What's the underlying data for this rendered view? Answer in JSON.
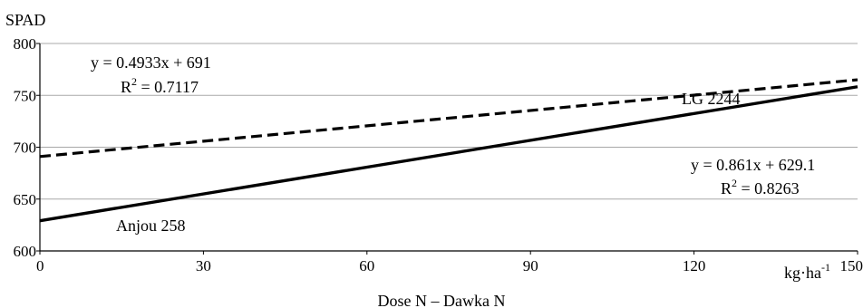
{
  "chart_data": {
    "type": "line",
    "title": "",
    "ylabel": "SPAD",
    "xlabel": "Dose N – Dawka N",
    "x_unit": "kg·ha",
    "x_unit_sup": "-1",
    "xlim": [
      0,
      150
    ],
    "ylim": [
      600,
      800
    ],
    "x_ticks": [
      0,
      30,
      60,
      90,
      120,
      150
    ],
    "y_ticks": [
      600,
      650,
      700,
      750,
      800
    ],
    "grid": "horizontal",
    "series": [
      {
        "name": "LG 2244",
        "style": "dashed",
        "color": "#000000",
        "x": [
          0,
          150
        ],
        "y": [
          691,
          765
        ],
        "equation": "y = 0.4933x + 691",
        "r2_prefix": "R",
        "r2_value": " = 0.7117"
      },
      {
        "name": "Anjou 258",
        "style": "solid",
        "color": "#000000",
        "x": [
          0,
          150
        ],
        "y": [
          629.1,
          758.3
        ],
        "equation": "y = 0.861x + 629.1",
        "r2_prefix": "R",
        "r2_value": " = 0.8263"
      }
    ]
  }
}
